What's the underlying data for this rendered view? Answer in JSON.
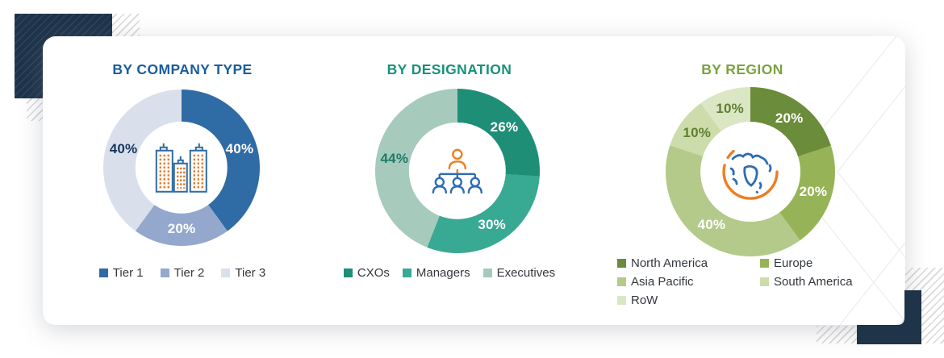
{
  "decor": {
    "corner_color": "#1f3349",
    "hatch_line_color": "#d9d9d9",
    "card_background": "#ffffff"
  },
  "chart_data": [
    {
      "type": "pie",
      "subtype": "donut",
      "title": "BY COMPANY TYPE",
      "title_color": "#1a5d9c",
      "center_icon": "buildings-icon",
      "legend_layout": "row",
      "segments": [
        {
          "label": "Tier 1",
          "value": 40,
          "value_label": "40%",
          "color": "#2f6ba4",
          "value_label_color": "#ffffff"
        },
        {
          "label": "Tier 2",
          "value": 20,
          "value_label": "20%",
          "color": "#94a8cd",
          "value_label_color": "#ffffff"
        },
        {
          "label": "Tier 3",
          "value": 40,
          "value_label": "40%",
          "color": "#d9e0ec",
          "value_label_color": "#17365c"
        }
      ]
    },
    {
      "type": "pie",
      "subtype": "donut",
      "title": "BY DESIGNATION",
      "title_color": "#17917a",
      "center_icon": "org-chart-icon",
      "legend_layout": "row",
      "segments": [
        {
          "label": "CXOs",
          "value": 26,
          "value_label": "26%",
          "color": "#1f8e77",
          "value_label_color": "#ffffff"
        },
        {
          "label": "Managers",
          "value": 30,
          "value_label": "30%",
          "color": "#38a992",
          "value_label_color": "#ffffff"
        },
        {
          "label": "Executives",
          "value": 44,
          "value_label": "44%",
          "color": "#a6cabc",
          "value_label_color": "#1d7c67"
        }
      ]
    },
    {
      "type": "pie",
      "subtype": "donut",
      "title": "BY REGION",
      "title_color": "#7ba23e",
      "center_icon": "globe-icon",
      "legend_layout": "grid-2col",
      "segments": [
        {
          "label": "North America",
          "value": 20,
          "value_label": "20%",
          "color": "#6b8c3a",
          "value_label_color": "#ffffff"
        },
        {
          "label": "Europe",
          "value": 20,
          "value_label": "20%",
          "color": "#96b457",
          "value_label_color": "#ffffff"
        },
        {
          "label": "Asia Pacific",
          "value": 40,
          "value_label": "40%",
          "color": "#b3ca8a",
          "value_label_color": "#ffffff"
        },
        {
          "label": "South America",
          "value": 10,
          "value_label": "10%",
          "color": "#ccdcaa",
          "value_label_color": "#5f8033"
        },
        {
          "label": "RoW",
          "value": 10,
          "value_label": "10%",
          "color": "#dbe6c4",
          "value_label_color": "#5f8033"
        }
      ]
    }
  ]
}
